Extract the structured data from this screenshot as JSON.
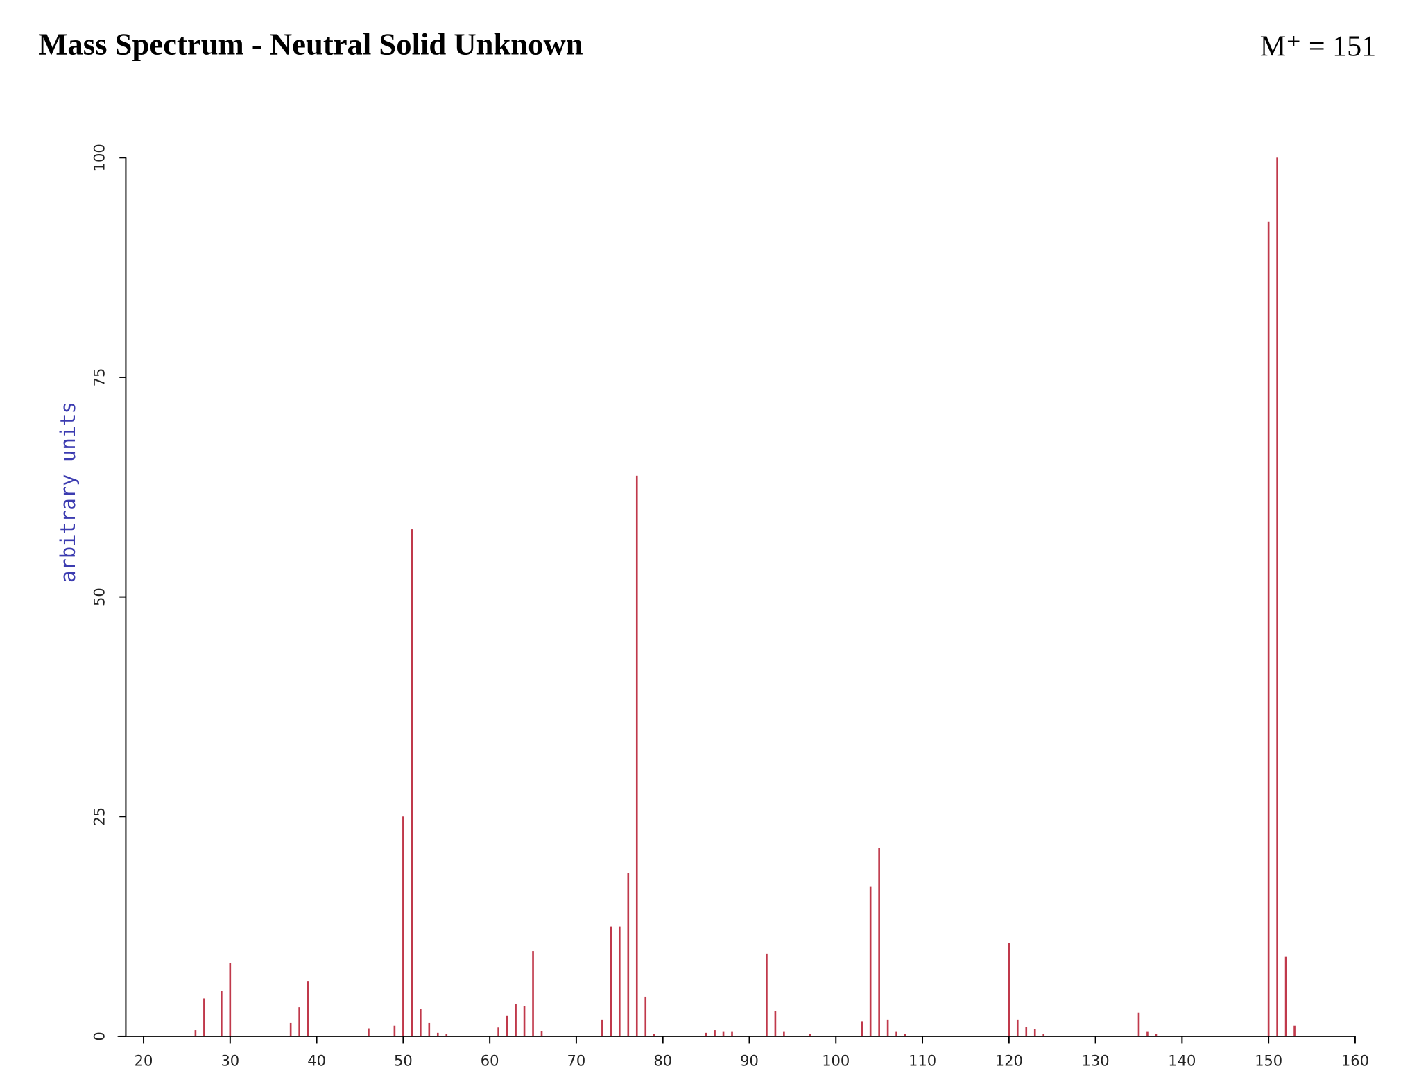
{
  "chart_data": {
    "type": "spectrum",
    "title": "Mass Spectrum - Neutral Solid Unknown",
    "annotation": "M⁺ = 151",
    "y_label": "arbitrary units",
    "color": "#c0394b",
    "x": [
      26,
      27,
      29,
      30,
      37,
      38,
      39,
      46,
      49,
      50,
      51,
      52,
      53,
      54,
      55,
      61,
      62,
      63,
      64,
      65,
      66,
      73,
      74,
      75,
      76,
      77,
      78,
      79,
      85,
      86,
      87,
      88,
      92,
      93,
      94,
      97,
      103,
      104,
      105,
      106,
      107,
      108,
      120,
      121,
      122,
      123,
      124,
      135,
      136,
      137,
      150,
      151,
      152,
      153
    ],
    "values": [
      0.7,
      4.3,
      5.2,
      8.3,
      1.5,
      3.3,
      6.3,
      0.9,
      1.2,
      25,
      57.7,
      3.1,
      1.5,
      0.4,
      0.3,
      1.0,
      2.3,
      3.7,
      3.4,
      9.7,
      0.6,
      1.9,
      12.5,
      12.5,
      18.6,
      63.8,
      4.5,
      0.3,
      0.4,
      0.7,
      0.5,
      0.5,
      9.4,
      2.9,
      0.5,
      0.3,
      1.7,
      17.0,
      21.4,
      1.9,
      0.5,
      0.3,
      10.6,
      1.9,
      1.1,
      0.8,
      0.3,
      2.7,
      0.5,
      0.3,
      92.7,
      100,
      9.1,
      1.2
    ],
    "xlim": [
      17,
      160
    ],
    "ylim": [
      0,
      100
    ],
    "xticks": [
      20,
      30,
      40,
      50,
      60,
      70,
      80,
      90,
      100,
      110,
      120,
      130,
      140,
      150,
      160
    ],
    "yticks": [
      0,
      25,
      50,
      75,
      100
    ]
  }
}
